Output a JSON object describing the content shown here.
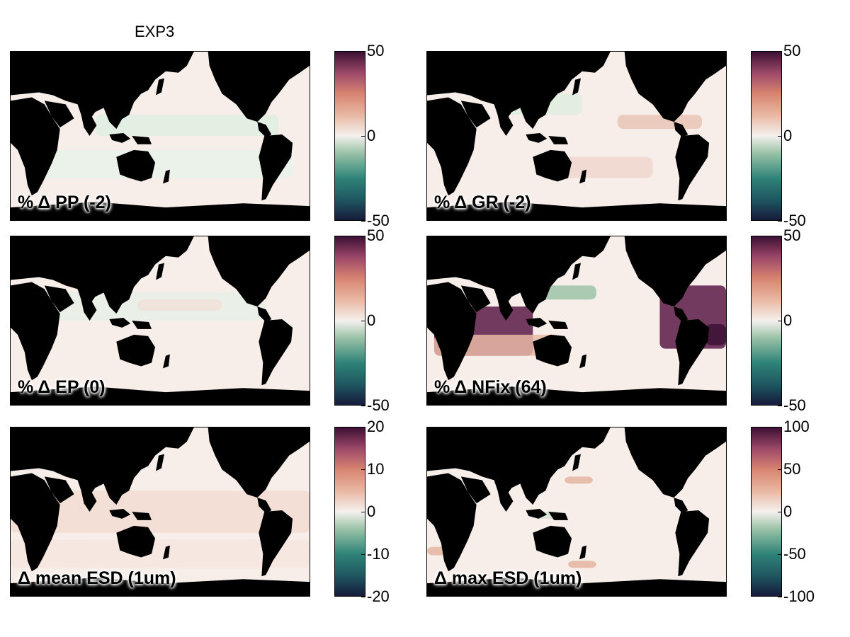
{
  "figure_title": "EXP3",
  "colors": {
    "land": "#000000",
    "ocean_neutral": "#f7eeea",
    "cmap_low": "#161b3b",
    "cmap_mid": "#f4f1ee",
    "cmap_high": "#3c1033"
  },
  "chart_data": [
    {
      "type": "heatmap",
      "label": "% Δ PP (-2)",
      "colorbar_ticks": [
        "50",
        "0",
        "-50"
      ],
      "clim": [
        -50,
        50
      ]
    },
    {
      "type": "heatmap",
      "label": "% Δ GR (-2)",
      "colorbar_ticks": [
        "50",
        "0",
        "-50"
      ],
      "clim": [
        -50,
        50
      ]
    },
    {
      "type": "heatmap",
      "label": "% Δ EP (0)",
      "colorbar_ticks": [
        "50",
        "0",
        "-50"
      ],
      "clim": [
        -50,
        50
      ]
    },
    {
      "type": "heatmap",
      "label": "% Δ NFix (64)",
      "colorbar_ticks": [
        "50",
        "0",
        "-50"
      ],
      "clim": [
        -50,
        50
      ]
    },
    {
      "type": "heatmap",
      "label": "Δ mean ESD (1um)",
      "colorbar_ticks": [
        "20",
        "10",
        "0",
        "-10",
        "-20"
      ],
      "clim": [
        -20,
        20
      ]
    },
    {
      "type": "heatmap",
      "label": "Δ max ESD (1um)",
      "colorbar_ticks": [
        "100",
        "50",
        "0",
        "-50",
        "-100"
      ],
      "clim": [
        -100,
        100
      ]
    }
  ]
}
